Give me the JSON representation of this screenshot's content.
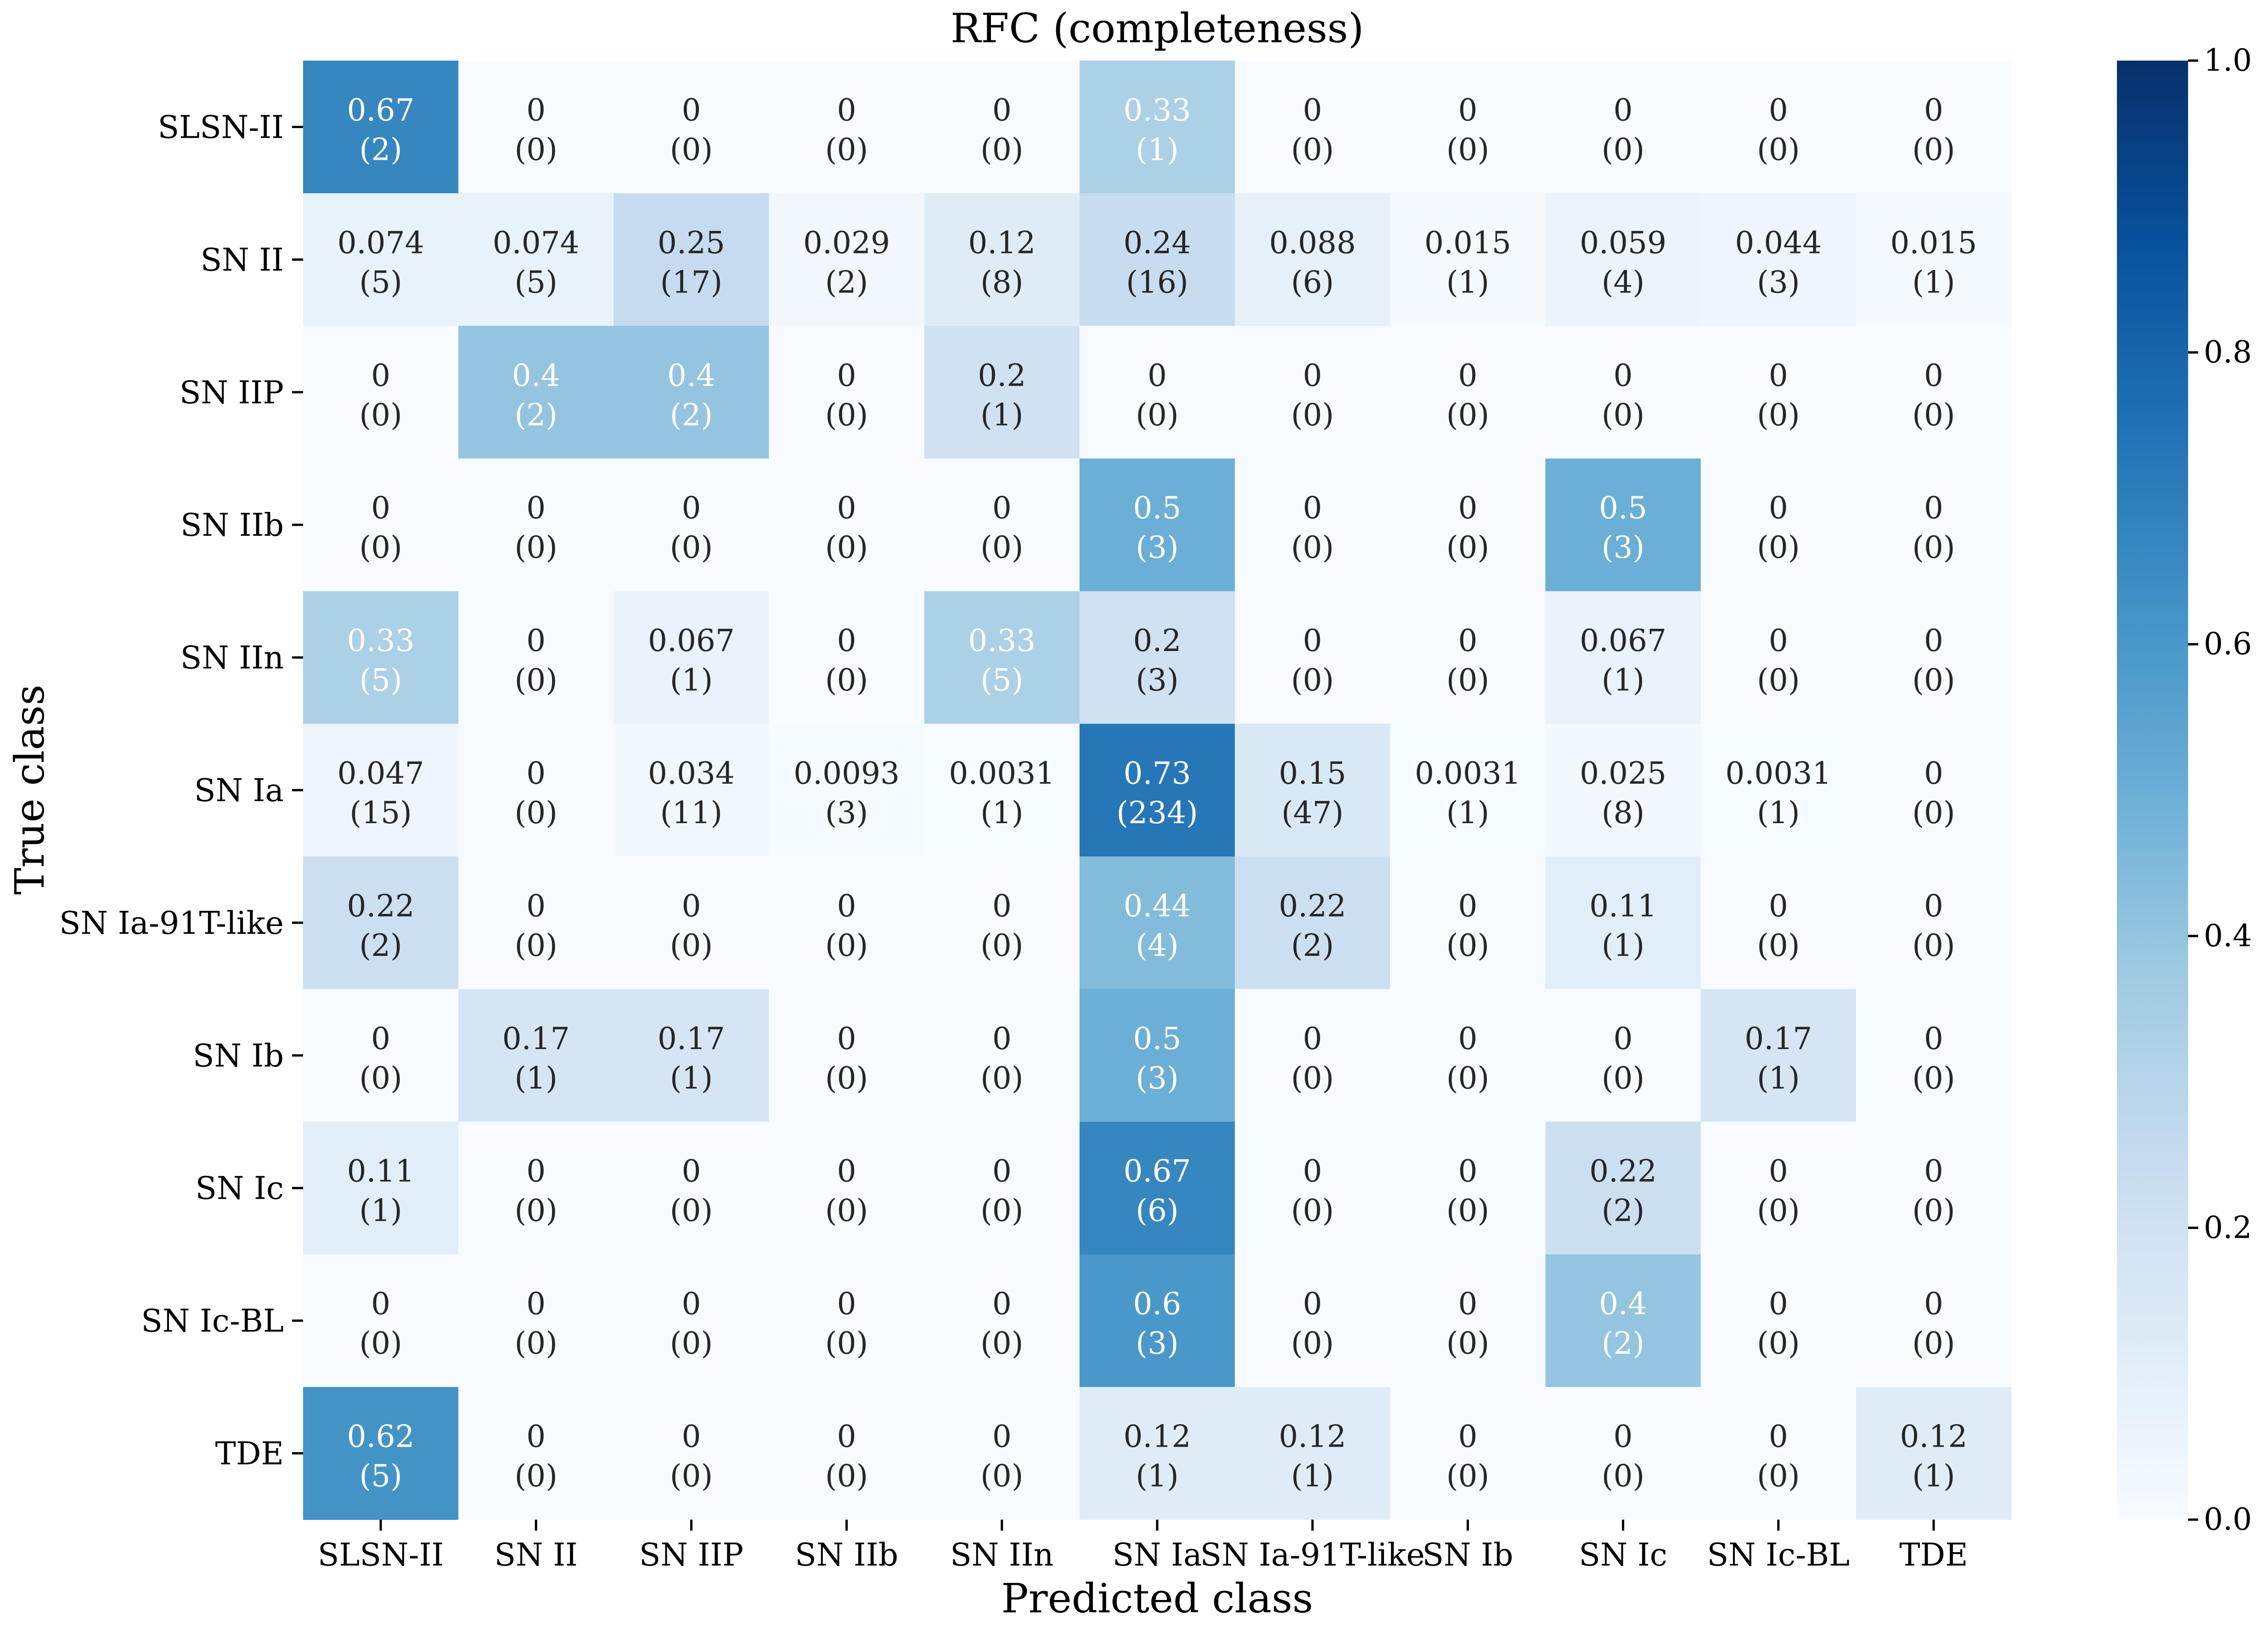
{
  "chart_data": {
    "type": "heatmap",
    "title": "RFC (completeness)",
    "xlabel": "Predicted class",
    "ylabel": "True class",
    "x_categories": [
      "SLSN-II",
      "SN II",
      "SN IIP",
      "SN IIb",
      "SN IIn",
      "SN Ia",
      "SN Ia-91T-like",
      "SN Ib",
      "SN Ic",
      "SN Ic-BL",
      "TDE"
    ],
    "y_categories": [
      "SLSN-II",
      "SN II",
      "SN IIP",
      "SN IIb",
      "SN IIn",
      "SN Ia",
      "SN Ia-91T-like",
      "SN Ib",
      "SN Ic",
      "SN Ic-BL",
      "TDE"
    ],
    "value_labels": [
      [
        "0.67",
        "0",
        "0",
        "0",
        "0",
        "0.33",
        "0",
        "0",
        "0",
        "0",
        "0"
      ],
      [
        "0.074",
        "0.074",
        "0.25",
        "0.029",
        "0.12",
        "0.24",
        "0.088",
        "0.015",
        "0.059",
        "0.044",
        "0.015"
      ],
      [
        "0",
        "0.4",
        "0.4",
        "0",
        "0.2",
        "0",
        "0",
        "0",
        "0",
        "0",
        "0"
      ],
      [
        "0",
        "0",
        "0",
        "0",
        "0",
        "0.5",
        "0",
        "0",
        "0.5",
        "0",
        "0"
      ],
      [
        "0.33",
        "0",
        "0.067",
        "0",
        "0.33",
        "0.2",
        "0",
        "0",
        "0.067",
        "0",
        "0"
      ],
      [
        "0.047",
        "0",
        "0.034",
        "0.0093",
        "0.0031",
        "0.73",
        "0.15",
        "0.0031",
        "0.025",
        "0.0031",
        "0"
      ],
      [
        "0.22",
        "0",
        "0",
        "0",
        "0",
        "0.44",
        "0.22",
        "0",
        "0.11",
        "0",
        "0"
      ],
      [
        "0",
        "0.17",
        "0.17",
        "0",
        "0",
        "0.5",
        "0",
        "0",
        "0",
        "0.17",
        "0"
      ],
      [
        "0.11",
        "0",
        "0",
        "0",
        "0",
        "0.67",
        "0",
        "0",
        "0.22",
        "0",
        "0"
      ],
      [
        "0",
        "0",
        "0",
        "0",
        "0",
        "0.6",
        "0",
        "0",
        "0.4",
        "0",
        "0"
      ],
      [
        "0.62",
        "0",
        "0",
        "0",
        "0",
        "0.12",
        "0.12",
        "0",
        "0",
        "0",
        "0.12"
      ]
    ],
    "counts": [
      [
        2,
        0,
        0,
        0,
        0,
        1,
        0,
        0,
        0,
        0,
        0
      ],
      [
        5,
        5,
        17,
        2,
        8,
        16,
        6,
        1,
        4,
        3,
        1
      ],
      [
        0,
        2,
        2,
        0,
        1,
        0,
        0,
        0,
        0,
        0,
        0
      ],
      [
        0,
        0,
        0,
        0,
        0,
        3,
        0,
        0,
        3,
        0,
        0
      ],
      [
        5,
        0,
        1,
        0,
        5,
        3,
        0,
        0,
        1,
        0,
        0
      ],
      [
        15,
        0,
        11,
        3,
        1,
        234,
        47,
        1,
        8,
        1,
        0
      ],
      [
        2,
        0,
        0,
        0,
        0,
        4,
        2,
        0,
        1,
        0,
        0
      ],
      [
        0,
        1,
        1,
        0,
        0,
        3,
        0,
        0,
        0,
        1,
        0
      ],
      [
        1,
        0,
        0,
        0,
        0,
        6,
        0,
        0,
        2,
        0,
        0
      ],
      [
        0,
        0,
        0,
        0,
        0,
        3,
        0,
        0,
        2,
        0,
        0
      ],
      [
        5,
        0,
        0,
        0,
        0,
        1,
        1,
        0,
        0,
        0,
        1
      ]
    ],
    "colorbar": {
      "range": [
        0.0,
        1.0
      ],
      "ticks": [
        "0.0",
        "0.2",
        "0.4",
        "0.6",
        "0.8",
        "1.0"
      ],
      "colormap": "Blues"
    },
    "grid": false
  }
}
